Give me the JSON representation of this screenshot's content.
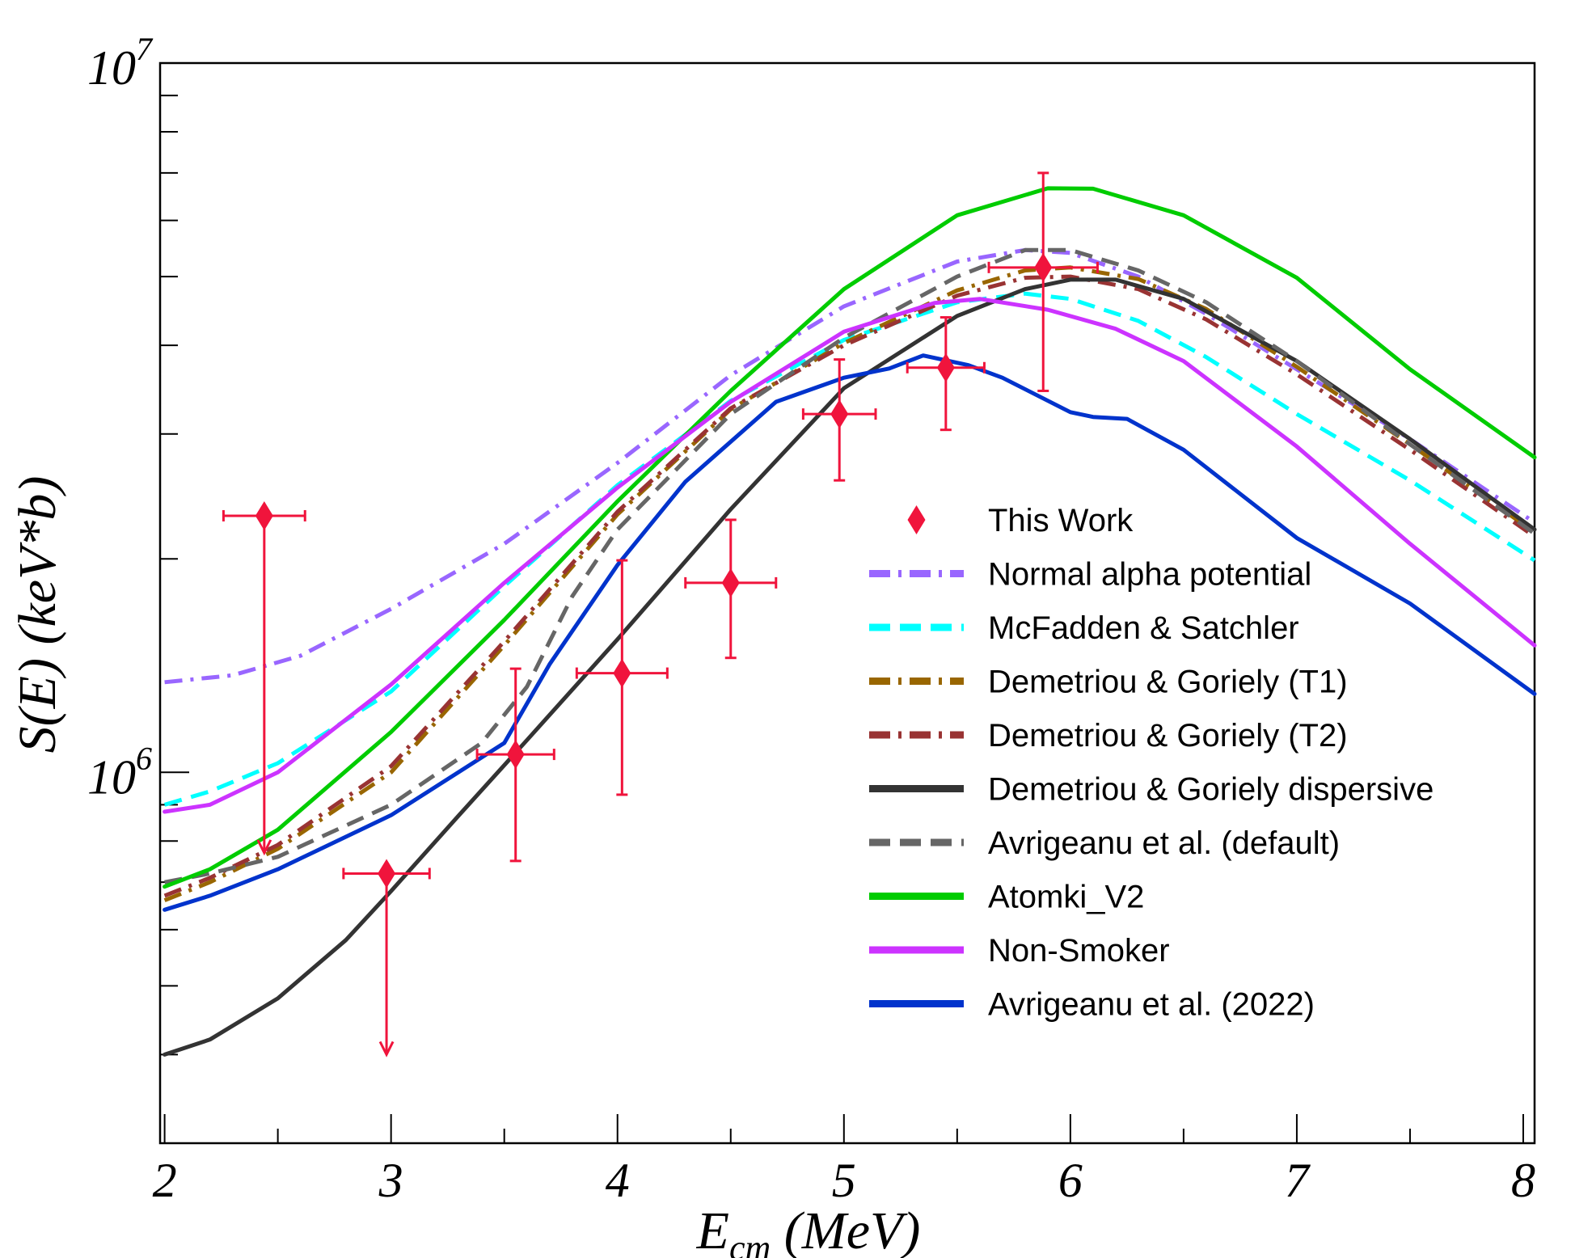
{
  "chart_data": {
    "type": "line",
    "xlabel": {
      "main": "E",
      "sub": "cm",
      "rest": " (MeV)"
    },
    "ylabel": "S(E) (keV*b)",
    "xlim": [
      1.98,
      8.05
    ],
    "ylim": [
      300000,
      10000000
    ],
    "yscale": "log",
    "x_ticks": [
      2,
      3,
      4,
      5,
      6,
      7,
      8
    ],
    "y_ticks": [
      {
        "base": "10",
        "exp": "6",
        "value": 1000000
      },
      {
        "base": "10",
        "exp": "7",
        "value": 10000000
      }
    ],
    "legend_position": "lower-right",
    "experiment": {
      "name": "This Work",
      "color": "#f0143c",
      "points": [
        {
          "x": 2.44,
          "y": 2300000,
          "xerr": 0.18,
          "ylo": 770000,
          "yhi": 2300000,
          "upper_limit": true
        },
        {
          "x": 2.98,
          "y": 720000,
          "xerr": 0.19,
          "ylo": 400000,
          "yhi": 720000,
          "upper_limit": true
        },
        {
          "x": 3.55,
          "y": 1060000,
          "xerr": 0.17,
          "ylo": 750000,
          "yhi": 1400000
        },
        {
          "x": 4.02,
          "y": 1380000,
          "xerr": 0.2,
          "ylo": 930000,
          "yhi": 1990000
        },
        {
          "x": 4.5,
          "y": 1850000,
          "xerr": 0.2,
          "ylo": 1450000,
          "yhi": 2270000
        },
        {
          "x": 4.98,
          "y": 3200000,
          "xerr": 0.16,
          "ylo": 2580000,
          "yhi": 3820000
        },
        {
          "x": 5.45,
          "y": 3720000,
          "xerr": 0.17,
          "ylo": 3040000,
          "yhi": 4380000
        },
        {
          "x": 5.88,
          "y": 5150000,
          "xerr": 0.24,
          "ylo": 3450000,
          "yhi": 7000000
        }
      ]
    },
    "series": [
      {
        "name": "Normal alpha potential",
        "color": "#9966ff",
        "style": "dashdot",
        "x": [
          2,
          2.3,
          2.6,
          3,
          3.5,
          4,
          4.5,
          5,
          5.5,
          5.8,
          6,
          6.3,
          6.6,
          7,
          7.5,
          8.05
        ],
        "y": [
          1340000,
          1370000,
          1460000,
          1700000,
          2100000,
          2730000,
          3630000,
          4540000,
          5250000,
          5450000,
          5400000,
          5000000,
          4430000,
          3700000,
          2950000,
          2250000
        ]
      },
      {
        "name": "McFadden & Satchler",
        "color": "#00ffff",
        "style": "dashed",
        "x": [
          2,
          2.2,
          2.5,
          3,
          3.5,
          4,
          4.5,
          5,
          5.5,
          5.8,
          6,
          6.3,
          6.6,
          7,
          7.5,
          8.05
        ],
        "y": [
          900000,
          940000,
          1030000,
          1300000,
          1830000,
          2540000,
          3340000,
          4070000,
          4600000,
          4730000,
          4650000,
          4330000,
          3850000,
          3200000,
          2580000,
          1990000
        ]
      },
      {
        "name": "Demetriou & Goriely (T1)",
        "color": "#996600",
        "style": "dashdot",
        "x": [
          2,
          2.2,
          2.5,
          3,
          3.5,
          4,
          4.5,
          5,
          5.5,
          5.8,
          6,
          6.3,
          6.6,
          7,
          7.5,
          8.05
        ],
        "y": [
          660000,
          700000,
          780000,
          1000000,
          1510000,
          2310000,
          3250000,
          4030000,
          4780000,
          5100000,
          5150000,
          4960000,
          4500000,
          3730000,
          2900000,
          2180000
        ]
      },
      {
        "name": "Demetriou & Goriely (T2)",
        "color": "#993333",
        "style": "dashdot",
        "x": [
          2,
          2.2,
          2.5,
          3,
          3.5,
          4,
          4.5,
          5,
          5.5,
          5.8,
          6,
          6.3,
          6.6,
          7,
          7.5,
          8.05
        ],
        "y": [
          670000,
          710000,
          790000,
          1020000,
          1530000,
          2330000,
          3260000,
          4000000,
          4700000,
          4980000,
          5000000,
          4800000,
          4350000,
          3640000,
          2850000,
          2150000
        ]
      },
      {
        "name": "Demetriou & Goriely dispersive",
        "color": "#333333",
        "style": "solid",
        "x": [
          2,
          2.2,
          2.5,
          2.8,
          3,
          3.3,
          3.6,
          4,
          4.5,
          5,
          5.5,
          5.8,
          6,
          6.2,
          6.5,
          7,
          7.5,
          8.05
        ],
        "y": [
          400000,
          420000,
          480000,
          580000,
          680000,
          870000,
          1110000,
          1540000,
          2350000,
          3480000,
          4400000,
          4800000,
          4950000,
          4950000,
          4650000,
          3800000,
          2950000,
          2200000
        ]
      },
      {
        "name": "Avrigeanu et al. (default)",
        "color": "#666666",
        "style": "dashed",
        "x": [
          2,
          2.2,
          2.5,
          3,
          3.4,
          3.6,
          3.8,
          4,
          4.5,
          5,
          5.5,
          5.8,
          6,
          6.3,
          6.6,
          7,
          7.5,
          8.05
        ],
        "y": [
          700000,
          720000,
          760000,
          900000,
          1100000,
          1320000,
          1770000,
          2200000,
          3200000,
          4100000,
          5000000,
          5450000,
          5450000,
          5100000,
          4600000,
          3800000,
          2900000,
          2170000
        ]
      },
      {
        "name": "Atomki_V2",
        "color": "#00cc00",
        "style": "solid",
        "x": [
          2,
          2.2,
          2.5,
          3,
          3.5,
          4,
          4.5,
          5,
          5.5,
          5.9,
          6.1,
          6.5,
          7,
          7.5,
          8.05
        ],
        "y": [
          690000,
          730000,
          830000,
          1140000,
          1640000,
          2410000,
          3450000,
          4800000,
          6100000,
          6660000,
          6650000,
          6100000,
          4980000,
          3700000,
          2780000
        ]
      },
      {
        "name": "Non-Smoker",
        "color": "#cc33ff",
        "style": "solid",
        "x": [
          2,
          2.2,
          2.5,
          3,
          3.5,
          4,
          4.5,
          5,
          5.4,
          5.6,
          5.9,
          6.2,
          6.5,
          7,
          7.5,
          8.05
        ],
        "y": [
          880000,
          900000,
          1000000,
          1330000,
          1850000,
          2520000,
          3330000,
          4180000,
          4590000,
          4650000,
          4490000,
          4220000,
          3800000,
          2880000,
          2100000,
          1510000
        ]
      },
      {
        "name": "Avrigeanu et al. (2022)",
        "color": "#0033cc",
        "style": "solid",
        "x": [
          2,
          2.2,
          2.5,
          3,
          3.5,
          3.7,
          4,
          4.3,
          4.7,
          5,
          5.2,
          5.35,
          5.55,
          5.7,
          6,
          6.1,
          6.25,
          6.5,
          7,
          7.5,
          8.05
        ],
        "y": [
          640000,
          670000,
          730000,
          870000,
          1100000,
          1420000,
          1960000,
          2570000,
          3330000,
          3600000,
          3710000,
          3870000,
          3750000,
          3600000,
          3220000,
          3170000,
          3150000,
          2850000,
          2140000,
          1730000,
          1290000
        ]
      }
    ]
  }
}
